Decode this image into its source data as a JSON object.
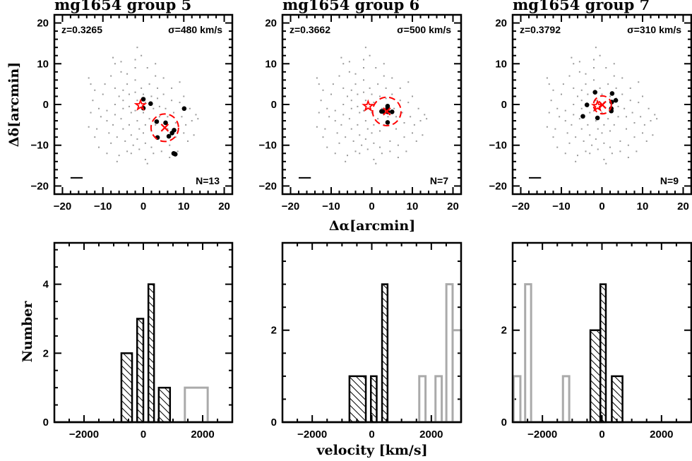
{
  "axis_labels": {
    "scatter_x": "Δα[arcmin]",
    "scatter_y": "Δδ[arcmin]",
    "hist_x": "velocity [km/s]",
    "hist_y": "Number"
  },
  "colors": {
    "member": "#000000",
    "field": "#999999",
    "center": "#ff0000",
    "hist_outside": "#aaaaaa",
    "hist_member": "#000000"
  },
  "field_galaxies": [
    [
      -13.5,
      6.5
    ],
    [
      -13,
      5
    ],
    [
      -12,
      3.5
    ],
    [
      -12.5,
      1
    ],
    [
      -13,
      -2
    ],
    [
      -13.5,
      -5.5
    ],
    [
      -11,
      -1
    ],
    [
      -10.5,
      -3
    ],
    [
      -11.5,
      -6
    ],
    [
      -11,
      -10.5
    ],
    [
      -10,
      2.5
    ],
    [
      -9.5,
      5
    ],
    [
      -9,
      -1.5
    ],
    [
      -9,
      -4
    ],
    [
      -8.5,
      -7
    ],
    [
      -9,
      -12
    ],
    [
      -8,
      7
    ],
    [
      -7.5,
      11.5
    ],
    [
      -7,
      10
    ],
    [
      -7,
      4
    ],
    [
      -7,
      0
    ],
    [
      -7,
      -2.5
    ],
    [
      -7.5,
      -5
    ],
    [
      -6.5,
      -8
    ],
    [
      -6,
      -12.5
    ],
    [
      -6.5,
      -14
    ],
    [
      -5.5,
      10.5
    ],
    [
      -5.5,
      8
    ],
    [
      -5,
      3.5
    ],
    [
      -5,
      1
    ],
    [
      -5,
      -1
    ],
    [
      -5.5,
      -3.5
    ],
    [
      -5,
      -6
    ],
    [
      -4.5,
      -9
    ],
    [
      -4,
      7.5
    ],
    [
      -4,
      5
    ],
    [
      -3.5,
      2.5
    ],
    [
      -3.5,
      -0.5
    ],
    [
      -3,
      -2
    ],
    [
      -3.5,
      -5
    ],
    [
      -3,
      -7.5
    ],
    [
      -2.5,
      -10
    ],
    [
      -3,
      -12
    ],
    [
      -2,
      11
    ],
    [
      -2,
      9
    ],
    [
      -2,
      6
    ],
    [
      -2,
      3
    ],
    [
      -1.5,
      1
    ],
    [
      -2,
      -1.5
    ],
    [
      -1.5,
      -4
    ],
    [
      -1,
      -6
    ],
    [
      -1.5,
      -8.5
    ],
    [
      -1,
      -11
    ],
    [
      -1.5,
      14
    ],
    [
      -0.5,
      12
    ],
    [
      -0.5,
      4
    ],
    [
      0,
      2.5
    ],
    [
      0.5,
      0.5
    ],
    [
      0,
      -2
    ],
    [
      0.5,
      -5
    ],
    [
      0,
      -7
    ],
    [
      0.5,
      -9.5
    ],
    [
      0.5,
      -13.5
    ],
    [
      1,
      -14.5
    ],
    [
      1,
      9
    ],
    [
      1.5,
      5
    ],
    [
      2,
      2
    ],
    [
      2.5,
      -1
    ],
    [
      1.5,
      -3.5
    ],
    [
      2,
      -6.5
    ],
    [
      2,
      -10.5
    ],
    [
      2.5,
      -12
    ],
    [
      3,
      10
    ],
    [
      3,
      7
    ],
    [
      3.5,
      4
    ],
    [
      3.5,
      1.5
    ],
    [
      4,
      -0.5
    ],
    [
      4,
      -3
    ],
    [
      4.5,
      -9
    ],
    [
      4.5,
      -11.5
    ],
    [
      5,
      6.5
    ],
    [
      5,
      2.5
    ],
    [
      5.5,
      -1
    ],
    [
      6,
      -3
    ],
    [
      6.5,
      -10
    ],
    [
      6.5,
      -13
    ],
    [
      7,
      4
    ],
    [
      7,
      1
    ],
    [
      7.5,
      -2
    ],
    [
      8,
      -4.5
    ],
    [
      8,
      -8
    ],
    [
      8.5,
      -11.5
    ],
    [
      9,
      5.5
    ],
    [
      9,
      0.5
    ],
    [
      9.5,
      -3
    ],
    [
      10,
      -7
    ],
    [
      10,
      2
    ],
    [
      10.5,
      -5
    ],
    [
      11,
      -9
    ],
    [
      11.5,
      -1
    ],
    [
      12,
      -4
    ],
    [
      12.5,
      -7.5
    ],
    [
      13,
      -2.5
    ],
    [
      13.5,
      -3.5
    ],
    [
      -12,
      -8
    ],
    [
      -8,
      -9.5
    ],
    [
      -6,
      2
    ],
    [
      -4,
      -11.5
    ],
    [
      3,
      -5
    ],
    [
      6,
      -6
    ]
  ],
  "chart_data": [
    {
      "type": "scatter",
      "title": "mg1654 group 5",
      "redshift_label": "z=0.3265",
      "sigma_label": "σ=480 km/s",
      "n_label": "N=13",
      "xlim": [
        -22,
        22
      ],
      "ylim": [
        -22,
        22
      ],
      "x_ticks": [
        -20,
        -10,
        0,
        10,
        20
      ],
      "y_ticks": [
        -20,
        -10,
        0,
        10,
        20
      ],
      "tick_labels_x": [
        "−20",
        "−10",
        "0",
        "10",
        "20"
      ],
      "tick_labels_y": [
        "−20",
        "−10",
        "0",
        "10",
        "20"
      ],
      "members": [
        [
          0,
          1.3
        ],
        [
          0,
          -0.9
        ],
        [
          1.8,
          0.2
        ],
        [
          10.1,
          -1
        ],
        [
          3.3,
          -4.2
        ],
        [
          5.5,
          -4.5
        ],
        [
          7.6,
          -6.3
        ],
        [
          7.1,
          -7
        ],
        [
          6.3,
          -7.8
        ],
        [
          3.5,
          -8.1
        ],
        [
          7.5,
          -12
        ],
        [
          7.9,
          -12.2
        ],
        [
          7.7,
          -12.1
        ]
      ],
      "star": [
        -0.7,
        -0.2
      ],
      "centroid": [
        5.3,
        -5.7
      ],
      "circle_radius": 3.4,
      "scale_bar": [
        [
          -18,
          -18
        ],
        [
          -15,
          -18
        ]
      ]
    },
    {
      "type": "scatter",
      "title": "mg1654 group 6",
      "redshift_label": "z=0.3662",
      "sigma_label": "σ=500 km/s",
      "n_label": "N=7",
      "xlim": [
        -22,
        22
      ],
      "ylim": [
        -22,
        22
      ],
      "x_ticks": [
        -20,
        -10,
        0,
        10,
        20
      ],
      "y_ticks": [
        -20,
        -10,
        0,
        10,
        20
      ],
      "tick_labels_x": [
        "−20",
        "−10",
        "0",
        "10",
        "20"
      ],
      "tick_labels_y": [
        "−20",
        "−10",
        "0",
        "10",
        "20"
      ],
      "members": [
        [
          3.9,
          -0.4
        ],
        [
          3.9,
          -0.9
        ],
        [
          2.7,
          -1.7
        ],
        [
          2.4,
          -1.7
        ],
        [
          3.9,
          -1.8
        ],
        [
          5,
          -1.8
        ],
        [
          3.9,
          -4.4
        ]
      ],
      "star": [
        -0.9,
        -0.4
      ],
      "centroid": [
        3.7,
        -1.7
      ],
      "circle_radius": 3.5,
      "scale_bar": [
        [
          -18,
          -18
        ],
        [
          -15,
          -18
        ]
      ]
    },
    {
      "type": "scatter",
      "title": "mg1654 group 7",
      "redshift_label": "z=0.3792",
      "sigma_label": "σ=310 km/s",
      "n_label": "N=9",
      "xlim": [
        -22,
        22
      ],
      "ylim": [
        -22,
        22
      ],
      "x_ticks": [
        -20,
        -10,
        0,
        10,
        20
      ],
      "y_ticks": [
        -20,
        -10,
        0,
        10,
        20
      ],
      "tick_labels_x": [
        "−20",
        "−10",
        "0",
        "10",
        "20"
      ],
      "tick_labels_y": [
        "−20",
        "−10",
        "0",
        "10",
        "20"
      ],
      "members": [
        [
          -1.7,
          3
        ],
        [
          2.5,
          2.7
        ],
        [
          3.4,
          1
        ],
        [
          2.4,
          0.6
        ],
        [
          -3.7,
          -0.1
        ],
        [
          2.3,
          -1
        ],
        [
          2.3,
          -1.6
        ],
        [
          -4.7,
          -2.9
        ],
        [
          -1.1,
          -3.3
        ]
      ],
      "star": [
        -1.1,
        -0.4
      ],
      "centroid": [
        0.1,
        -0.1
      ],
      "circle_radius": 2.2,
      "scale_bar": [
        [
          -18,
          -18
        ],
        [
          -15,
          -18
        ]
      ]
    },
    {
      "type": "bar",
      "xlim": [
        -3000,
        3000
      ],
      "ylim": [
        0,
        5.2
      ],
      "x_ticks": [
        -2000,
        0,
        2000
      ],
      "tick_labels_x": [
        "−2000",
        "0",
        "2000"
      ],
      "y_ticks": [
        0,
        2,
        4
      ],
      "tick_labels_y": [
        "0",
        "2",
        "4"
      ],
      "members_bins": [
        [
          -740,
          -380,
          2
        ],
        [
          -210,
          0,
          3
        ],
        [
          170,
          360,
          4
        ],
        [
          520,
          900,
          1
        ]
      ],
      "outside_bins": [
        [
          1400,
          2170,
          1
        ]
      ]
    },
    {
      "type": "bar",
      "xlim": [
        -3000,
        3000
      ],
      "ylim": [
        0,
        3.9
      ],
      "x_ticks": [
        -2000,
        0,
        2000
      ],
      "tick_labels_x": [
        "−2000",
        "0",
        "2000"
      ],
      "y_ticks": [
        0,
        2
      ],
      "tick_labels_y": [
        "0",
        "2"
      ],
      "members_bins": [
        [
          -750,
          -200,
          1
        ],
        [
          -30,
          165,
          1
        ],
        [
          345,
          530,
          3
        ]
      ],
      "outside_bins": [
        [
          1595,
          1805,
          1
        ],
        [
          2140,
          2350,
          1
        ],
        [
          2505,
          2715,
          3
        ],
        [
          2715,
          3000,
          2
        ]
      ]
    },
    {
      "type": "bar",
      "xlim": [
        -3000,
        3000
      ],
      "ylim": [
        0,
        3.9
      ],
      "x_ticks": [
        -2000,
        0,
        2000
      ],
      "tick_labels_x": [
        "−2000",
        "0",
        "2000"
      ],
      "y_ticks": [
        0,
        2
      ],
      "tick_labels_y": [
        "0",
        "2"
      ],
      "members_bins": [
        [
          -390,
          -55,
          2
        ],
        [
          -55,
          130,
          3
        ],
        [
          330,
          690,
          1
        ]
      ],
      "outside_bins": [
        [
          -2970,
          -2740,
          1
        ],
        [
          -2580,
          -2380,
          3
        ],
        [
          -1310,
          -1100,
          1
        ]
      ]
    }
  ]
}
